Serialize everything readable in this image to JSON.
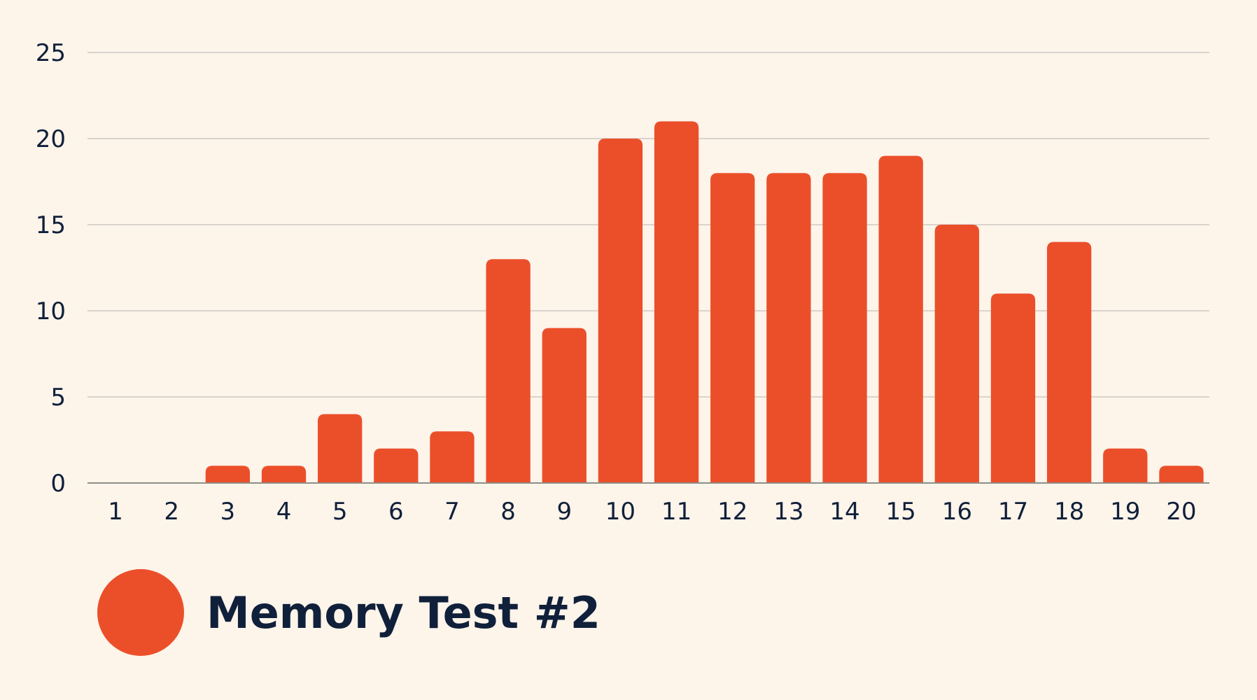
{
  "chart_data": {
    "type": "bar",
    "categories": [
      "1",
      "2",
      "3",
      "4",
      "5",
      "6",
      "7",
      "8",
      "9",
      "10",
      "11",
      "12",
      "13",
      "14",
      "15",
      "16",
      "17",
      "18",
      "19",
      "20"
    ],
    "series": [
      {
        "name": "Memory Test #2",
        "values": [
          0,
          0,
          1,
          1,
          4,
          2,
          3,
          13,
          9,
          20,
          21,
          18,
          18,
          18,
          19,
          15,
          11,
          14,
          2,
          1
        ],
        "color": "#eb4f2a"
      }
    ],
    "y_ticks": [
      0,
      5,
      10,
      15,
      20,
      25
    ],
    "ylim": [
      0,
      25
    ],
    "grid": true,
    "legend_position": "bottom-left",
    "title": "",
    "xlabel": "",
    "ylabel": ""
  },
  "colors": {
    "background": "#fdf4ea",
    "bar": "#eb4f2a",
    "text": "#10203a",
    "grid": "#cfcac4",
    "axis": "#8f8c88"
  }
}
